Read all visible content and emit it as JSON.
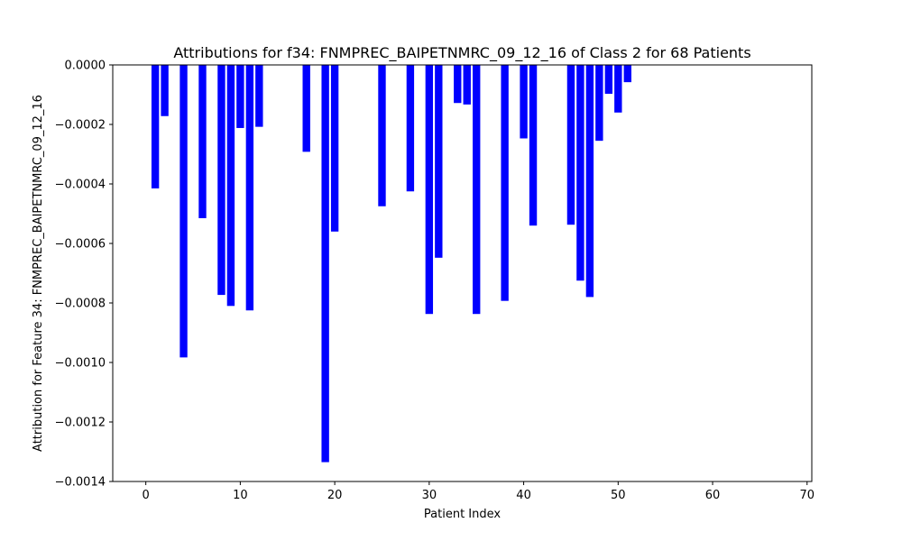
{
  "chart_data": {
    "type": "bar",
    "title": "Attributions for f34: FNMPREC_BAIPETNMRC_09_12_16 of Class 2 for 68 Patients",
    "xlabel": "Patient Index",
    "ylabel": "Attribution for Feature 34: FNMPREC_BAIPETNMRC_09_12_16",
    "xlim": [
      -3.5,
      70.5
    ],
    "ylim": [
      -0.0014,
      0.0
    ],
    "xticks": [
      0,
      10,
      20,
      30,
      40,
      50,
      60,
      70
    ],
    "xtick_labels": [
      "0",
      "10",
      "20",
      "30",
      "40",
      "50",
      "60",
      "70"
    ],
    "yticks": [
      0.0,
      -0.0002,
      -0.0004,
      -0.0006,
      -0.0008,
      -0.001,
      -0.0012,
      -0.0014
    ],
    "ytick_labels": [
      "0.0000",
      "−0.0002",
      "−0.0004",
      "−0.0006",
      "−0.0008",
      "−0.0010",
      "−0.0012",
      "−0.0014"
    ],
    "grid": false,
    "bar_color": "#0000ff",
    "x": [
      0,
      1,
      2,
      3,
      4,
      5,
      6,
      7,
      8,
      9,
      10,
      11,
      12,
      13,
      14,
      15,
      16,
      17,
      18,
      19,
      20,
      21,
      22,
      23,
      24,
      25,
      26,
      27,
      28,
      29,
      30,
      31,
      32,
      33,
      34,
      35,
      36,
      37,
      38,
      39,
      40,
      41,
      42,
      43,
      44,
      45,
      46,
      47,
      48,
      49,
      50,
      51,
      52,
      53,
      54,
      55,
      56,
      57,
      58,
      59,
      60,
      61,
      62,
      63,
      64,
      65,
      66,
      67
    ],
    "values": [
      0,
      -0.000415,
      -0.000172,
      0,
      -0.000983,
      0,
      -0.000515,
      0,
      -0.000773,
      -0.00081,
      -0.000212,
      -0.000825,
      -0.000208,
      0,
      0,
      0,
      0,
      -0.000292,
      0,
      -0.001335,
      -0.00056,
      0,
      0,
      0,
      0,
      -0.000475,
      0,
      0,
      -0.000425,
      0,
      -0.000837,
      -0.000648,
      0,
      -0.000128,
      -0.000133,
      -0.000837,
      0,
      0,
      -0.000793,
      0,
      -0.000247,
      -0.00054,
      0,
      0,
      0,
      -0.000537,
      -0.000725,
      -0.00078,
      -0.000255,
      -9.7e-05,
      -0.00016,
      -5.8e-05,
      0,
      0,
      0,
      0,
      0,
      0,
      0,
      0,
      0,
      0,
      0,
      0,
      0,
      0,
      0,
      0
    ]
  }
}
